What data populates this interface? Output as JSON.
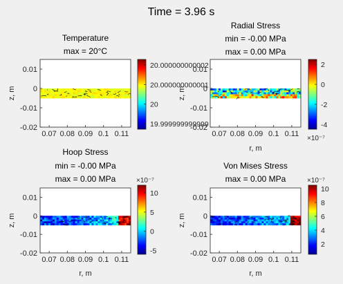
{
  "figure": {
    "title": "Time = 3.96 s"
  },
  "chart_data": [
    {
      "type": "heatmap",
      "title_lines": [
        "Temperature",
        "max = 20°C"
      ],
      "xlabel": "",
      "ylabel": "z, m",
      "xlim": [
        0.065,
        0.115
      ],
      "ylim": [
        -0.02,
        0.015
      ],
      "xticks": [
        "0.07",
        "0.08",
        "0.09",
        "0.1",
        "0.11"
      ],
      "yticks": [
        "0.01",
        "0",
        "-0.01",
        "-0.02"
      ],
      "band": {
        "r": [
          0.065,
          0.115
        ],
        "z": [
          -0.005,
          0.0
        ]
      },
      "colorbar": {
        "ticks": [
          "20.000000000002",
          "20.000000000001",
          "20",
          "19.999999999999"
        ],
        "exponent": ""
      },
      "field_pattern": "uniform-yellow"
    },
    {
      "type": "heatmap",
      "title_lines": [
        "Radial Stress",
        "min = -0.00 MPa",
        "max = 0.00 MPa"
      ],
      "xlabel": "r, m",
      "ylabel": "z, m",
      "xlim": [
        0.065,
        0.115
      ],
      "ylim": [
        -0.02,
        0.015
      ],
      "xticks": [
        "0.07",
        "0.08",
        "0.09",
        "0.1",
        "0.11"
      ],
      "yticks": [
        "0.01",
        "0",
        "-0.01",
        "-0.02"
      ],
      "band": {
        "r": [
          0.065,
          0.115
        ],
        "z": [
          -0.005,
          0.0
        ]
      },
      "colorbar": {
        "range": [
          -4.5,
          2.5
        ],
        "ticks": [
          "2",
          "0",
          "-2",
          "-4"
        ],
        "exponent": "×10⁻⁷"
      },
      "field_pattern": "radial"
    },
    {
      "type": "heatmap",
      "title_lines": [
        "Hoop Stress",
        "min = -0.00 MPa",
        "max = 0.00 MPa"
      ],
      "xlabel": "r, m",
      "ylabel": "z, m",
      "xlim": [
        0.065,
        0.115
      ],
      "ylim": [
        -0.02,
        0.015
      ],
      "xticks": [
        "0.07",
        "0.08",
        "0.09",
        "0.1",
        "0.11"
      ],
      "yticks": [
        "0.01",
        "0",
        "-0.01",
        "-0.02"
      ],
      "band": {
        "r": [
          0.065,
          0.115
        ],
        "z": [
          -0.005,
          0.0
        ]
      },
      "colorbar": {
        "range": [
          -6,
          12
        ],
        "ticks": [
          "10",
          "5",
          "0",
          "-5"
        ],
        "exponent": "×10⁻⁷"
      },
      "field_pattern": "hoop"
    },
    {
      "type": "heatmap",
      "title_lines": [
        "Von Mises Stress",
        "max = 0.00 MPa"
      ],
      "xlabel": "r, m",
      "ylabel": "z, m",
      "xlim": [
        0.065,
        0.115
      ],
      "ylim": [
        -0.02,
        0.015
      ],
      "xticks": [
        "0.07",
        "0.08",
        "0.09",
        "0.1",
        "0.11"
      ],
      "yticks": [
        "0.01",
        "0",
        "-0.01",
        "-0.02"
      ],
      "band": {
        "r": [
          0.065,
          0.115
        ],
        "z": [
          -0.005,
          0.0
        ]
      },
      "colorbar": {
        "range": [
          0.5,
          10.5
        ],
        "ticks": [
          "10",
          "8",
          "6",
          "4",
          "2"
        ],
        "exponent": "×10⁻⁷"
      },
      "field_pattern": "vonmises"
    }
  ]
}
